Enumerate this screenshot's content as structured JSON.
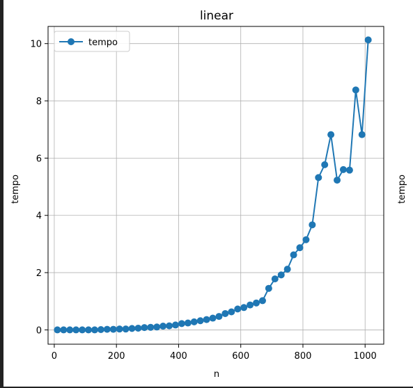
{
  "chart_data": {
    "type": "line",
    "title": "linear",
    "xlabel": "n",
    "ylabel": "tempo",
    "ylabel_right": "tempo",
    "xlim": [
      -20,
      1060
    ],
    "ylim": [
      -0.5,
      10.6
    ],
    "xticks": [
      0,
      200,
      400,
      600,
      800,
      1000
    ],
    "yticks": [
      0,
      2,
      4,
      6,
      8,
      10
    ],
    "grid": true,
    "legend_position": "top-left",
    "series": [
      {
        "name": "tempo",
        "color": "#1f77b4",
        "marker": "circle",
        "x": [
          10,
          30,
          50,
          70,
          90,
          110,
          130,
          150,
          170,
          190,
          210,
          230,
          250,
          270,
          290,
          310,
          330,
          350,
          370,
          390,
          410,
          430,
          450,
          470,
          490,
          510,
          530,
          550,
          570,
          590,
          610,
          630,
          650,
          670,
          690,
          710,
          730,
          750,
          770,
          790,
          810,
          830,
          850,
          870,
          890,
          910,
          930,
          950,
          970,
          990,
          1010
        ],
        "y": [
          0.0,
          0.0,
          0.0,
          0.0,
          0.0,
          0.0,
          0.0,
          0.01,
          0.02,
          0.02,
          0.03,
          0.03,
          0.05,
          0.06,
          0.08,
          0.09,
          0.1,
          0.13,
          0.14,
          0.17,
          0.22,
          0.24,
          0.28,
          0.32,
          0.36,
          0.41,
          0.47,
          0.57,
          0.63,
          0.73,
          0.78,
          0.87,
          0.94,
          1.02,
          1.45,
          1.78,
          1.92,
          2.12,
          2.62,
          2.87,
          3.15,
          3.67,
          5.32,
          5.77,
          6.82,
          5.23,
          5.6,
          5.58,
          8.38,
          6.82,
          10.13
        ]
      }
    ]
  }
}
